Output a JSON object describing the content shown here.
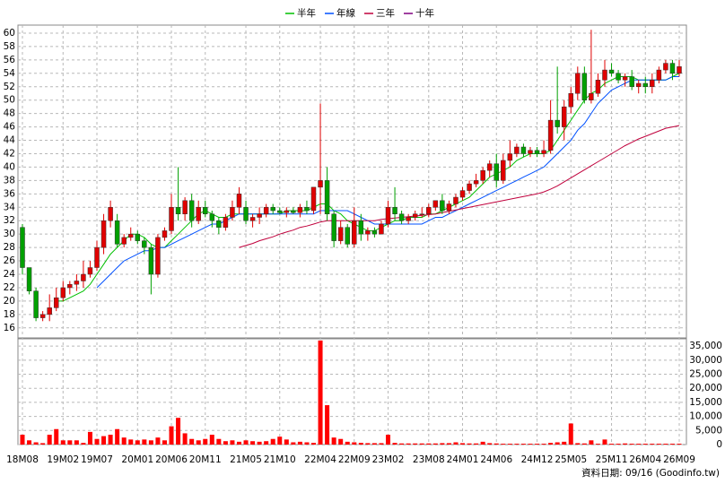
{
  "chart_data": {
    "type": "candlestick",
    "note": "資料日期: 09/16 (Goodinfo.tw)",
    "categories": [
      "18M08",
      null,
      null,
      null,
      null,
      null,
      "19M02",
      null,
      null,
      null,
      null,
      "19M07",
      null,
      null,
      null,
      null,
      null,
      "20M01",
      null,
      null,
      null,
      null,
      "20M06",
      null,
      null,
      null,
      null,
      "20M11",
      null,
      null,
      null,
      null,
      null,
      "21M05",
      null,
      null,
      null,
      null,
      "21M10",
      null,
      null,
      null,
      null,
      null,
      "22M04",
      null,
      null,
      null,
      null,
      "22M09",
      null,
      null,
      null,
      null,
      "23M02",
      null,
      null,
      null,
      null,
      null,
      "23M08",
      null,
      null,
      null,
      null,
      "24M01",
      null,
      null,
      null,
      null,
      "24M06",
      null,
      null,
      null,
      null,
      null,
      "24M12",
      null,
      null,
      null,
      null,
      "25M05",
      null,
      null,
      null,
      null,
      null,
      "25M11",
      null,
      null,
      null,
      null,
      "26M04",
      null,
      null,
      null,
      null,
      "26M09"
    ],
    "ohlc": [
      [
        31,
        31.5,
        24,
        25
      ],
      [
        25,
        25,
        21,
        21.5
      ],
      [
        21.5,
        22,
        17,
        17.5
      ],
      [
        17.5,
        18.5,
        17,
        18
      ],
      [
        18,
        21,
        17,
        19
      ],
      [
        19,
        22,
        18.5,
        20.5
      ],
      [
        20.5,
        23,
        20,
        22
      ],
      [
        22,
        23,
        21,
        22.5
      ],
      [
        22.5,
        24,
        21.5,
        23
      ],
      [
        23,
        26,
        22,
        24
      ],
      [
        24,
        26,
        23.5,
        25
      ],
      [
        25,
        29,
        24.5,
        28
      ],
      [
        28,
        33,
        27,
        32
      ],
      [
        32,
        35,
        31,
        34
      ],
      [
        32,
        33,
        28,
        28.5
      ],
      [
        28.5,
        30,
        28,
        29.5
      ],
      [
        29.5,
        31,
        29,
        30
      ],
      [
        30,
        30.5,
        28.5,
        29
      ],
      [
        29,
        29.5,
        27,
        28
      ],
      [
        28,
        28.5,
        21,
        24
      ],
      [
        24,
        30,
        23.5,
        29.5
      ],
      [
        29.5,
        31,
        29,
        30.5
      ],
      [
        30.5,
        36,
        30,
        34
      ],
      [
        34,
        40,
        32,
        33
      ],
      [
        33,
        35.5,
        32,
        35
      ],
      [
        35,
        36,
        31,
        32
      ],
      [
        32,
        35,
        31.5,
        34
      ],
      [
        34,
        35,
        32.5,
        33
      ],
      [
        33,
        33.5,
        31,
        32
      ],
      [
        32,
        32.5,
        30,
        31
      ],
      [
        31,
        33,
        30.5,
        32.5
      ],
      [
        32.5,
        35,
        32,
        34
      ],
      [
        34,
        37,
        33,
        36
      ],
      [
        34,
        35,
        31.5,
        32
      ],
      [
        32,
        33,
        31,
        32.5
      ],
      [
        32.5,
        34,
        31.5,
        33
      ],
      [
        33,
        34.5,
        32.5,
        34
      ],
      [
        34,
        34.5,
        33,
        33.5
      ],
      [
        33.5,
        34,
        33,
        33.2
      ],
      [
        33.2,
        34,
        32.5,
        33.5
      ],
      [
        33.5,
        34,
        33,
        33.2
      ],
      [
        33.2,
        34.5,
        32.5,
        34
      ],
      [
        34,
        35,
        33,
        33.5
      ],
      [
        33.5,
        37,
        33,
        37
      ],
      [
        37,
        49.5,
        33,
        38
      ],
      [
        38,
        40,
        32,
        33
      ],
      [
        33,
        33.5,
        28,
        29
      ],
      [
        29,
        32,
        28.5,
        31
      ],
      [
        31,
        31.5,
        28,
        28.5
      ],
      [
        28.5,
        34,
        28,
        32
      ],
      [
        32,
        33,
        29,
        30
      ],
      [
        30,
        31,
        29,
        30.5
      ],
      [
        30.5,
        31,
        29.5,
        30
      ],
      [
        30,
        32,
        30,
        31.5
      ],
      [
        31.5,
        35,
        31,
        34
      ],
      [
        34,
        37,
        32,
        33
      ],
      [
        33,
        33.5,
        31.5,
        32
      ],
      [
        32,
        33,
        31.5,
        32.5
      ],
      [
        32.5,
        33.5,
        32,
        33
      ],
      [
        33,
        34,
        32.5,
        33
      ],
      [
        33,
        34.5,
        32.5,
        34
      ],
      [
        34,
        35,
        33.5,
        35
      ],
      [
        35,
        36,
        33,
        33.5
      ],
      [
        33.5,
        35,
        33,
        34.5
      ],
      [
        34.5,
        36,
        34,
        35.5
      ],
      [
        35.5,
        37,
        35,
        36.5
      ],
      [
        36.5,
        38,
        36,
        37.5
      ],
      [
        37.5,
        39,
        37,
        38
      ],
      [
        38,
        40,
        37.5,
        39.5
      ],
      [
        39.5,
        41,
        38.5,
        40.5
      ],
      [
        40.5,
        42,
        37,
        38
      ],
      [
        38,
        42,
        37.5,
        41
      ],
      [
        41,
        44,
        40,
        42
      ],
      [
        42,
        43.5,
        41.5,
        43
      ],
      [
        43,
        43.5,
        41.5,
        42
      ],
      [
        42,
        43,
        41.5,
        42.5
      ],
      [
        42.5,
        43,
        41.5,
        42
      ],
      [
        42,
        44,
        41.5,
        42.5
      ],
      [
        42.5,
        50,
        42,
        47
      ],
      [
        47,
        55,
        45,
        46
      ],
      [
        46,
        50,
        44,
        49
      ],
      [
        49,
        52,
        48,
        51
      ],
      [
        51,
        55,
        50,
        54
      ],
      [
        54,
        55,
        49.5,
        50
      ],
      [
        50,
        60.5,
        49.5,
        51
      ],
      [
        51,
        54,
        50.5,
        53
      ],
      [
        53,
        56,
        52,
        54.5
      ],
      [
        54.5,
        55.5,
        53.5,
        54
      ],
      [
        54,
        54.5,
        52.5,
        53
      ],
      [
        53,
        54,
        52,
        53.5
      ],
      [
        53.5,
        54.5,
        51.5,
        52
      ],
      [
        52,
        53,
        51,
        52.5
      ],
      [
        52.5,
        53.5,
        51,
        52
      ],
      [
        52,
        54,
        51,
        53
      ],
      [
        53,
        55,
        52.5,
        54.5
      ],
      [
        54.5,
        56,
        54,
        55.5
      ],
      [
        55.5,
        56,
        53,
        54
      ],
      [
        54,
        56,
        53.5,
        55
      ]
    ],
    "up_color": "#e00000",
    "down_color": "#00a000",
    "series": [
      {
        "name": "半年",
        "color": "#00c000",
        "values": [
          null,
          null,
          null,
          null,
          null,
          20,
          20,
          20.5,
          21,
          21.5,
          22.5,
          24,
          25.5,
          27,
          28,
          29,
          30,
          30,
          29.5,
          28.5,
          28,
          28,
          29,
          30,
          31,
          32,
          33,
          33.5,
          33,
          32.5,
          32.5,
          33,
          33,
          33,
          33,
          33,
          33,
          33,
          33,
          33.5,
          33.5,
          33.5,
          33.5,
          34,
          34.5,
          34.5,
          33.5,
          33,
          32,
          31.5,
          31,
          30.5,
          30.5,
          31,
          31.5,
          32,
          32,
          32.5,
          32.5,
          32.5,
          33,
          33,
          33.5,
          34,
          34.5,
          35,
          35.5,
          36.5,
          37.5,
          38.5,
          39,
          39.5,
          40,
          41,
          41.5,
          42,
          42,
          42,
          42.5,
          44,
          45.5,
          47,
          48.5,
          50,
          51,
          51.5,
          52.5,
          53,
          53.5,
          53.5,
          53.5,
          53,
          53,
          53,
          53,
          53,
          53.5,
          54
        ]
      },
      {
        "name": "年線",
        "color": "#0050ff",
        "values": [
          null,
          null,
          null,
          null,
          null,
          null,
          null,
          null,
          null,
          null,
          null,
          22,
          23,
          24,
          25,
          26,
          26.5,
          27,
          27.5,
          27.5,
          28,
          28,
          28.5,
          29,
          29.5,
          30,
          30.5,
          31,
          31.5,
          31.5,
          32,
          32.5,
          33,
          33,
          33,
          33,
          33,
          33,
          33,
          33,
          33,
          33,
          33,
          33,
          33.5,
          33.5,
          33.5,
          33.5,
          33.5,
          33,
          32.5,
          32,
          31.5,
          31.5,
          31.5,
          31.5,
          31.5,
          31.5,
          31.5,
          31.5,
          32,
          32.5,
          32.5,
          33,
          33.5,
          34,
          34.5,
          35,
          35.5,
          36,
          36.5,
          37,
          37.5,
          38,
          38.5,
          39,
          39.5,
          40,
          41,
          42,
          43,
          44,
          45.5,
          46.5,
          48,
          49.5,
          50.5,
          51.5,
          52,
          52.5,
          53,
          53,
          53,
          53,
          53,
          53,
          53.5,
          53.5
        ]
      },
      {
        "name": "三年",
        "color": "#c0003c",
        "values": [
          null,
          null,
          null,
          null,
          null,
          null,
          null,
          null,
          null,
          null,
          null,
          null,
          null,
          null,
          null,
          null,
          null,
          null,
          null,
          null,
          null,
          null,
          null,
          null,
          null,
          null,
          null,
          null,
          null,
          null,
          null,
          null,
          28,
          28.3,
          28.6,
          29,
          29.3,
          29.6,
          30,
          30.3,
          30.6,
          31,
          31.2,
          31.5,
          31.8,
          32,
          32,
          32,
          32,
          32,
          32,
          32,
          32,
          32.2,
          32.3,
          32.4,
          32.5,
          32.6,
          32.7,
          32.8,
          32.9,
          33,
          33.2,
          33.4,
          33.6,
          33.8,
          34,
          34.2,
          34.4,
          34.6,
          34.8,
          35,
          35.2,
          35.4,
          35.6,
          35.8,
          36,
          36.3,
          36.7,
          37.2,
          37.8,
          38.4,
          39,
          39.6,
          40.2,
          40.8,
          41.4,
          42,
          42.6,
          43.2,
          43.7,
          44.2,
          44.6,
          45,
          45.4,
          45.8,
          46,
          46.2
        ]
      },
      {
        "name": "十年",
        "color": "#800080",
        "values": [
          null,
          null,
          null,
          null,
          null,
          null,
          null,
          null,
          null,
          null,
          null,
          null,
          null,
          null,
          null,
          null,
          null,
          null,
          null,
          null,
          null,
          null,
          null,
          null,
          null,
          null,
          null,
          null,
          null,
          null,
          null,
          null,
          null,
          null,
          null,
          null,
          null,
          null,
          null,
          null,
          null,
          null,
          null,
          null,
          null,
          null,
          null,
          null,
          null,
          null,
          null,
          null,
          null,
          null,
          null,
          null,
          null,
          null,
          null,
          null,
          null,
          null,
          null,
          null,
          null,
          null,
          null,
          null,
          null,
          null,
          null,
          null,
          null,
          null,
          null,
          null,
          null,
          null,
          null,
          null,
          null,
          null,
          null,
          null,
          null,
          null,
          null,
          null,
          null,
          null,
          null,
          null,
          null,
          null,
          null,
          null,
          null,
          null
        ]
      }
    ],
    "ylim": [
      14.5,
      61.2
    ],
    "yticks": [
      16,
      18,
      20,
      22,
      24,
      26,
      28,
      30,
      32,
      34,
      36,
      38,
      40,
      42,
      44,
      46,
      48,
      50,
      52,
      54,
      56,
      58,
      60
    ],
    "volume": {
      "color": "#ff0000",
      "values": [
        3500,
        1500,
        800,
        500,
        3500,
        5500,
        1500,
        1500,
        1500,
        600,
        4500,
        2000,
        3000,
        3500,
        5500,
        2500,
        1800,
        1500,
        1800,
        1500,
        2500,
        1500,
        6500,
        9500,
        4000,
        2000,
        1500,
        2000,
        3500,
        2000,
        1200,
        1500,
        1000,
        1500,
        1200,
        1000,
        1200,
        2000,
        2800,
        1800,
        800,
        1000,
        800,
        600,
        37000,
        14000,
        2500,
        2000,
        1000,
        800,
        600,
        500,
        500,
        500,
        3500,
        600,
        400,
        400,
        400,
        400,
        400,
        400,
        500,
        500,
        800,
        500,
        400,
        400,
        1000,
        500,
        400,
        300,
        300,
        300,
        300,
        300,
        300,
        300,
        600,
        800,
        1000,
        7500,
        500,
        400,
        1500,
        300,
        1800,
        300,
        300,
        400,
        300,
        300,
        300,
        300,
        300,
        300,
        300,
        300
      ],
      "ylim": [
        0,
        37600
      ],
      "yticks": [
        0,
        {
          "value": 5000,
          "label": "5,000"
        },
        {
          "value": 10000,
          "label": "10,000"
        },
        {
          "value": 15000,
          "label": "15,000"
        },
        {
          "value": 20000,
          "label": "20,000"
        },
        {
          "value": 25000,
          "label": "25,000"
        },
        {
          "value": 30000,
          "label": "30,000"
        },
        {
          "value": 35000,
          "label": "35,000"
        }
      ]
    },
    "grid": true
  }
}
